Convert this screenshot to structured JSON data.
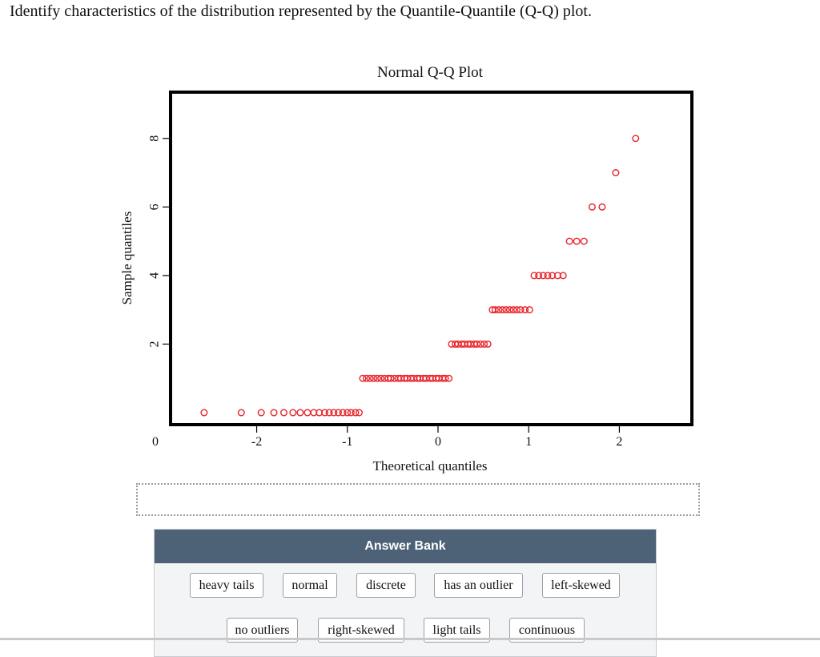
{
  "question": "Identify characteristics of the distribution represented by the Quantile-Quantile (Q-Q) plot.",
  "answer_bank": {
    "title": "Answer Bank",
    "chips_row1": [
      "heavy tails",
      "normal",
      "discrete",
      "has an outlier",
      "left-skewed"
    ],
    "chips_row2": [
      "no outliers",
      "right-skewed",
      "light tails",
      "continuous"
    ]
  },
  "chart_data": {
    "type": "scatter",
    "title": "Normal Q-Q Plot",
    "xlabel": "Theoretical quantiles",
    "ylabel": "Sample quantiles",
    "xlim": [
      -2.95,
      2.8
    ],
    "ylim": [
      -0.35,
      9.35
    ],
    "x_ticks": [
      -2,
      -1,
      0,
      1,
      2
    ],
    "x_tick_labels": [
      "-2",
      "-1",
      "0",
      "1",
      "2"
    ],
    "y_ticks": [
      2,
      4,
      6,
      8
    ],
    "y_tick_labels": [
      "2",
      "4",
      "6",
      "8"
    ],
    "origin_label": "0",
    "grid": false,
    "marker": "open-circle",
    "color": "#e8242a",
    "points": [
      [
        -2.58,
        0
      ],
      [
        -2.17,
        0
      ],
      [
        -1.95,
        0
      ],
      [
        -1.81,
        0
      ],
      [
        -1.7,
        0
      ],
      [
        -1.6,
        0
      ],
      [
        -1.52,
        0
      ],
      [
        -1.44,
        0
      ],
      [
        -1.37,
        0
      ],
      [
        -1.31,
        0
      ],
      [
        -1.25,
        0
      ],
      [
        -1.2,
        0
      ],
      [
        -1.15,
        0
      ],
      [
        -1.1,
        0
      ],
      [
        -1.05,
        0
      ],
      [
        -1.0,
        0
      ],
      [
        -0.96,
        0
      ],
      [
        -0.91,
        0
      ],
      [
        -0.87,
        0
      ],
      [
        -0.83,
        1
      ],
      [
        -0.79,
        1
      ],
      [
        -0.75,
        1
      ],
      [
        -0.71,
        1
      ],
      [
        -0.67,
        1
      ],
      [
        -0.63,
        1
      ],
      [
        -0.59,
        1
      ],
      [
        -0.55,
        1
      ],
      [
        -0.52,
        1
      ],
      [
        -0.48,
        1
      ],
      [
        -0.44,
        1
      ],
      [
        -0.41,
        1
      ],
      [
        -0.37,
        1
      ],
      [
        -0.34,
        1
      ],
      [
        -0.3,
        1
      ],
      [
        -0.27,
        1
      ],
      [
        -0.23,
        1
      ],
      [
        -0.2,
        1
      ],
      [
        -0.16,
        1
      ],
      [
        -0.13,
        1
      ],
      [
        -0.09,
        1
      ],
      [
        -0.06,
        1
      ],
      [
        -0.02,
        1
      ],
      [
        0.01,
        1
      ],
      [
        0.05,
        1
      ],
      [
        0.08,
        1
      ],
      [
        0.12,
        1
      ],
      [
        0.15,
        2
      ],
      [
        0.19,
        2
      ],
      [
        0.22,
        2
      ],
      [
        0.26,
        2
      ],
      [
        0.29,
        2
      ],
      [
        0.33,
        2
      ],
      [
        0.36,
        2
      ],
      [
        0.4,
        2
      ],
      [
        0.43,
        2
      ],
      [
        0.47,
        2
      ],
      [
        0.51,
        2
      ],
      [
        0.55,
        2
      ],
      [
        0.6,
        3
      ],
      [
        0.63,
        3
      ],
      [
        0.67,
        3
      ],
      [
        0.71,
        3
      ],
      [
        0.75,
        3
      ],
      [
        0.79,
        3
      ],
      [
        0.83,
        3
      ],
      [
        0.87,
        3
      ],
      [
        0.91,
        3
      ],
      [
        0.96,
        3
      ],
      [
        1.01,
        3
      ],
      [
        1.06,
        4
      ],
      [
        1.11,
        4
      ],
      [
        1.16,
        4
      ],
      [
        1.21,
        4
      ],
      [
        1.26,
        4
      ],
      [
        1.32,
        4
      ],
      [
        1.38,
        4
      ],
      [
        1.45,
        5
      ],
      [
        1.53,
        5
      ],
      [
        1.61,
        5
      ],
      [
        1.7,
        6
      ],
      [
        1.81,
        6
      ],
      [
        1.96,
        7
      ],
      [
        2.18,
        8
      ]
    ]
  }
}
